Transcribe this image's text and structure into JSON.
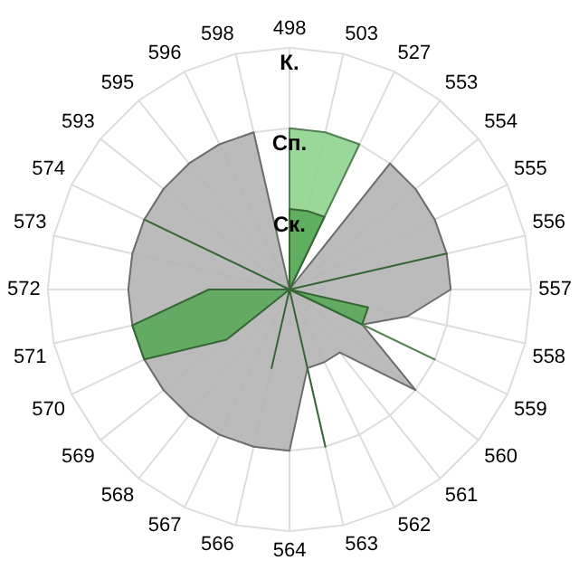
{
  "chart_data": {
    "type": "radar",
    "categories": [
      "498",
      "503",
      "527",
      "553",
      "554",
      "555",
      "556",
      "557",
      "558",
      "559",
      "560",
      "561",
      "562",
      "563",
      "564",
      "566",
      "567",
      "568",
      "569",
      "570",
      "571",
      "572",
      "573",
      "574",
      "593",
      "595",
      "596",
      "598"
    ],
    "series": [
      {
        "color": "#b4b4b4",
        "values": [
          0,
          0,
          0,
          2,
          2,
          2,
          2,
          2,
          1.5,
          1,
          2,
          1,
          1,
          1,
          2,
          2,
          2,
          2,
          2,
          2,
          2,
          2,
          2,
          2,
          2,
          2,
          2,
          2
        ]
      },
      {
        "color": "#8fd48f",
        "values": [
          2,
          2,
          2,
          0,
          0,
          0,
          0,
          0,
          0,
          2,
          0,
          0,
          0,
          0,
          0,
          0,
          0,
          0,
          0,
          0,
          0,
          0,
          0,
          0,
          0,
          0,
          0,
          0
        ]
      },
      {
        "color": "#5aaa5a",
        "values": [
          1,
          1,
          1,
          0,
          0,
          0,
          2,
          0,
          1,
          1,
          0,
          0,
          0,
          2,
          0,
          1,
          0,
          0,
          1,
          2,
          2,
          1,
          0,
          2,
          0,
          0,
          0,
          0
        ]
      }
    ],
    "ylim": [
      0,
      3
    ],
    "yticks": [
      {
        "value": 1,
        "label": "Ск."
      },
      {
        "value": 2,
        "label": "Сп."
      },
      {
        "value": 3,
        "label": "К."
      }
    ],
    "grid": true,
    "legend": false,
    "marker": "none"
  }
}
